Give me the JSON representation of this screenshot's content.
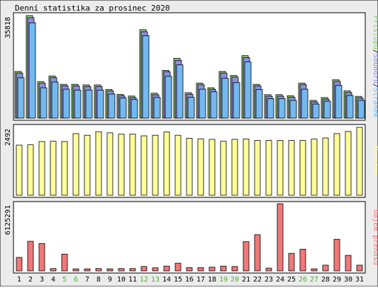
{
  "title": "Denní statistika za prosinec 2020",
  "colors": {
    "background": "#ececec",
    "panel": "#ffffff",
    "border": "#000000",
    "hits": "#91c97e",
    "files": "#8e8ee0",
    "pages": "#73b9f0",
    "visits": "#ffff99",
    "kbytes": "#f07878",
    "weekday_label": "#000000",
    "weekend_label": "#4caf2c"
  },
  "chart_data": [
    {
      "type": "bar",
      "name": "hits-files-pages",
      "max_label": "35818",
      "ymax": 35818,
      "legend": [
        {
          "text": "Přístupů",
          "color": "#91c97e"
        },
        {
          "text": "/",
          "color": "#000000"
        },
        {
          "text": "Souborů",
          "color": "#8e8ee0"
        },
        {
          "text": "/",
          "color": "#000000"
        },
        {
          "text": "Stránek",
          "color": "#73b9f0"
        }
      ],
      "series": [
        {
          "key": "hits",
          "values": [
            16300,
            35818,
            12700,
            14700,
            11800,
            11800,
            11600,
            11600,
            10000,
            8300,
            7700,
            30900,
            8700,
            16700,
            20900,
            8900,
            12200,
            10600,
            16300,
            14900,
            21800,
            11800,
            8200,
            8200,
            7800,
            12200,
            6200,
            7200,
            13400,
            9500,
            7600
          ]
        },
        {
          "key": "files",
          "values": [
            16000,
            35300,
            12400,
            14400,
            11500,
            11500,
            11300,
            11300,
            9700,
            8000,
            7400,
            30400,
            8400,
            16400,
            20400,
            8600,
            11900,
            10300,
            16000,
            14600,
            21400,
            11500,
            7900,
            7900,
            7500,
            11900,
            5900,
            6900,
            13100,
            9200,
            7300
          ]
        },
        {
          "key": "pages",
          "values": [
            14600,
            33800,
            11100,
            13100,
            10600,
            10300,
            10300,
            10300,
            8900,
            7500,
            7000,
            29300,
            7700,
            15100,
            19100,
            7800,
            10600,
            9700,
            14400,
            12900,
            20100,
            10500,
            7300,
            7300,
            6700,
            10600,
            5400,
            6400,
            11900,
            8400,
            6700
          ]
        }
      ]
    },
    {
      "type": "bar",
      "name": "visits",
      "max_label": "2492",
      "ymax": 2492,
      "legend": [
        {
          "text": "Návštěv",
          "color": "#ffff99"
        }
      ],
      "series": [
        {
          "key": "visits",
          "values": [
            1840,
            1850,
            1970,
            1980,
            1970,
            2260,
            2200,
            2330,
            2290,
            2240,
            2240,
            2180,
            2200,
            2320,
            2200,
            2090,
            2070,
            2050,
            1980,
            2050,
            2060,
            2010,
            2010,
            2010,
            2010,
            2010,
            2060,
            2100,
            2260,
            2340,
            2492
          ]
        }
      ]
    },
    {
      "type": "bar",
      "name": "kbytes",
      "max_label": "6125291",
      "ymax": 6125291,
      "legend": [
        {
          "text": "Objem přenosu",
          "color": "#f07878"
        }
      ],
      "series": [
        {
          "key": "kbytes",
          "values": [
            1230000,
            2700000,
            2500000,
            210000,
            1530000,
            190000,
            190000,
            210000,
            190000,
            210000,
            210000,
            400000,
            280000,
            440000,
            700000,
            300000,
            300000,
            340000,
            440000,
            400000,
            2660000,
            3300000,
            250000,
            6125291,
            1600000,
            1980000,
            190000,
            520000,
            2880000,
            1420000,
            520000
          ]
        }
      ]
    }
  ],
  "x_labels": [
    "1",
    "2",
    "3",
    "4",
    "5",
    "6",
    "7",
    "8",
    "9",
    "10",
    "11",
    "12",
    "13",
    "14",
    "15",
    "16",
    "17",
    "18",
    "19",
    "20",
    "21",
    "22",
    "23",
    "24",
    "25",
    "26",
    "27",
    "28",
    "29",
    "30",
    "31"
  ],
  "weekend_days": [
    "5",
    "6",
    "12",
    "13",
    "19",
    "20",
    "26",
    "27"
  ]
}
